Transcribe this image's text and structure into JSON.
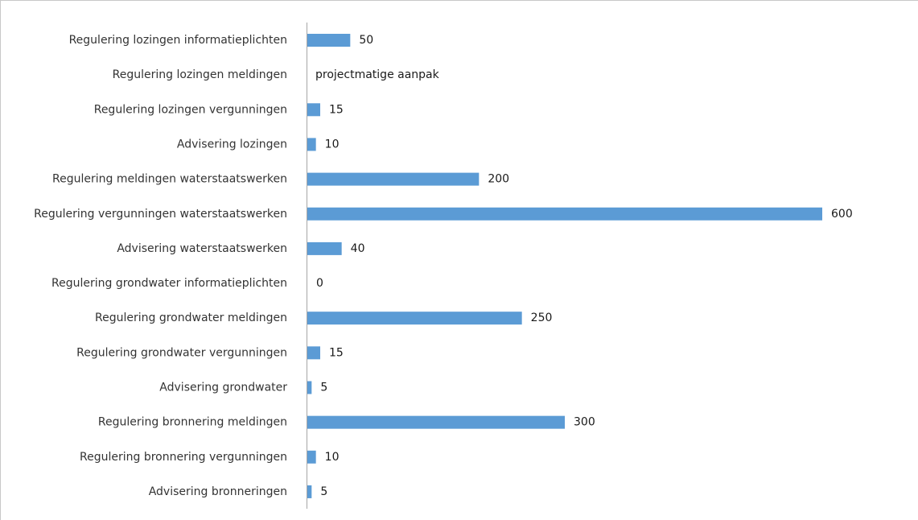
{
  "chart_data": {
    "type": "bar",
    "orientation": "horizontal",
    "categories": [
      "Regulering lozingen informatieplichten",
      "Regulering lozingen meldingen",
      "Regulering lozingen vergunningen",
      "Advisering lozingen",
      "Regulering meldingen waterstaatswerken",
      "Regulering vergunningen waterstaatswerken",
      "Advisering waterstaatswerken",
      "Regulering grondwater informatieplichten",
      "Regulering grondwater meldingen",
      "Regulering grondwater vergunningen",
      "Advisering grondwater",
      "Regulering bronnering meldingen",
      "Regulering bronnering vergunningen",
      "Advisering bronneringen"
    ],
    "values": [
      50,
      null,
      15,
      10,
      200,
      600,
      40,
      0,
      250,
      15,
      5,
      300,
      10,
      5
    ],
    "data_labels": [
      "50",
      "projectmatige aanpak",
      "15",
      "10",
      "200",
      "600",
      "40",
      "0",
      "250",
      "15",
      "5",
      "300",
      "10",
      "5"
    ],
    "xlim": [
      0,
      600
    ],
    "grid": false,
    "legend": "none",
    "colors": {
      "bar": "#5b9bd5",
      "axis": "#a6a6a6",
      "frame": "#c8c8c8"
    }
  }
}
